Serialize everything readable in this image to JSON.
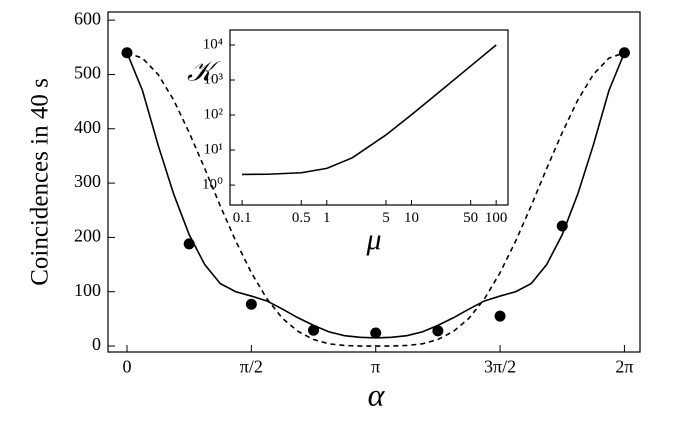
{
  "chart_data": [
    {
      "type": "line",
      "y_label": "Coincidences in 40 s",
      "x_label": "α",
      "xlim": [
        -0.24,
        6.48
      ],
      "ylim": [
        -11,
        615
      ],
      "xticks": [
        0,
        {
          "value": 1.5708,
          "label": "π/2"
        },
        {
          "value": 3.1416,
          "label": "π"
        },
        {
          "value": 4.7124,
          "label": "3π/2"
        },
        {
          "value": 6.2832,
          "label": "2π"
        }
      ],
      "yticks": [
        0,
        100,
        200,
        300,
        400,
        500,
        600
      ],
      "color": "#000000",
      "x": [
        0,
        0.19635,
        0.3927,
        0.58905,
        0.7854,
        0.98175,
        1.1781,
        1.37445,
        1.5708,
        1.76715,
        1.9635,
        2.15985,
        2.3562,
        2.55255,
        2.7489,
        2.94525,
        3.1416,
        3.33794,
        3.53429,
        3.73064,
        3.92699,
        4.12334,
        4.31969,
        4.51604,
        4.71239,
        4.90874,
        5.10509,
        5.30144,
        5.49779,
        5.69414,
        5.89049,
        6.08684,
        6.28319
      ],
      "series": [
        {
          "style": "solid",
          "values": [
            540,
            470,
            370,
            280,
            205,
            150,
            115,
            100,
            92,
            83,
            68,
            52,
            38,
            26,
            19,
            16,
            15,
            16,
            19,
            26,
            38,
            52,
            68,
            83,
            92,
            100,
            115,
            150,
            205,
            280,
            370,
            470,
            540
          ]
        },
        {
          "style": "dashed",
          "values": [
            540,
            530,
            500,
            453,
            393,
            327,
            258,
            193,
            135,
            87,
            51,
            27,
            12,
            4,
            1,
            0,
            0,
            0,
            1,
            4,
            12,
            27,
            51,
            87,
            135,
            193,
            258,
            327,
            393,
            453,
            500,
            530,
            540
          ]
        }
      ],
      "points": {
        "x": [
          0,
          0.7854,
          1.5708,
          2.3562,
          3.1416,
          3.927,
          4.7124,
          5.4978,
          6.2832
        ],
        "values": [
          540,
          188,
          77,
          29,
          24,
          28,
          55,
          221,
          540
        ]
      }
    },
    {
      "type": "line",
      "y_label": "𝒦",
      "x_label": "μ",
      "xscale": "log",
      "yscale": "log",
      "xlim": [
        0.072,
        138
      ],
      "ylim": [
        0.27,
        26800
      ],
      "xticks": [
        0.1,
        0.5,
        1,
        5,
        10,
        50,
        100
      ],
      "yticks": [
        {
          "value": 1,
          "label": "10⁰"
        },
        {
          "value": 10,
          "label": "10¹"
        },
        {
          "value": 100,
          "label": "10²"
        },
        {
          "value": 1000,
          "label": "10³"
        },
        {
          "value": 10000,
          "label": "10⁴"
        }
      ],
      "color": "#000000",
      "x": [
        0.1,
        0.2,
        0.5,
        1,
        2,
        5,
        10,
        20,
        50,
        100
      ],
      "series": [
        {
          "style": "solid",
          "values": [
            2.01,
            2.04,
            2.25,
            3,
            6,
            27,
            102,
            402,
            2502,
            10002
          ]
        }
      ]
    }
  ]
}
